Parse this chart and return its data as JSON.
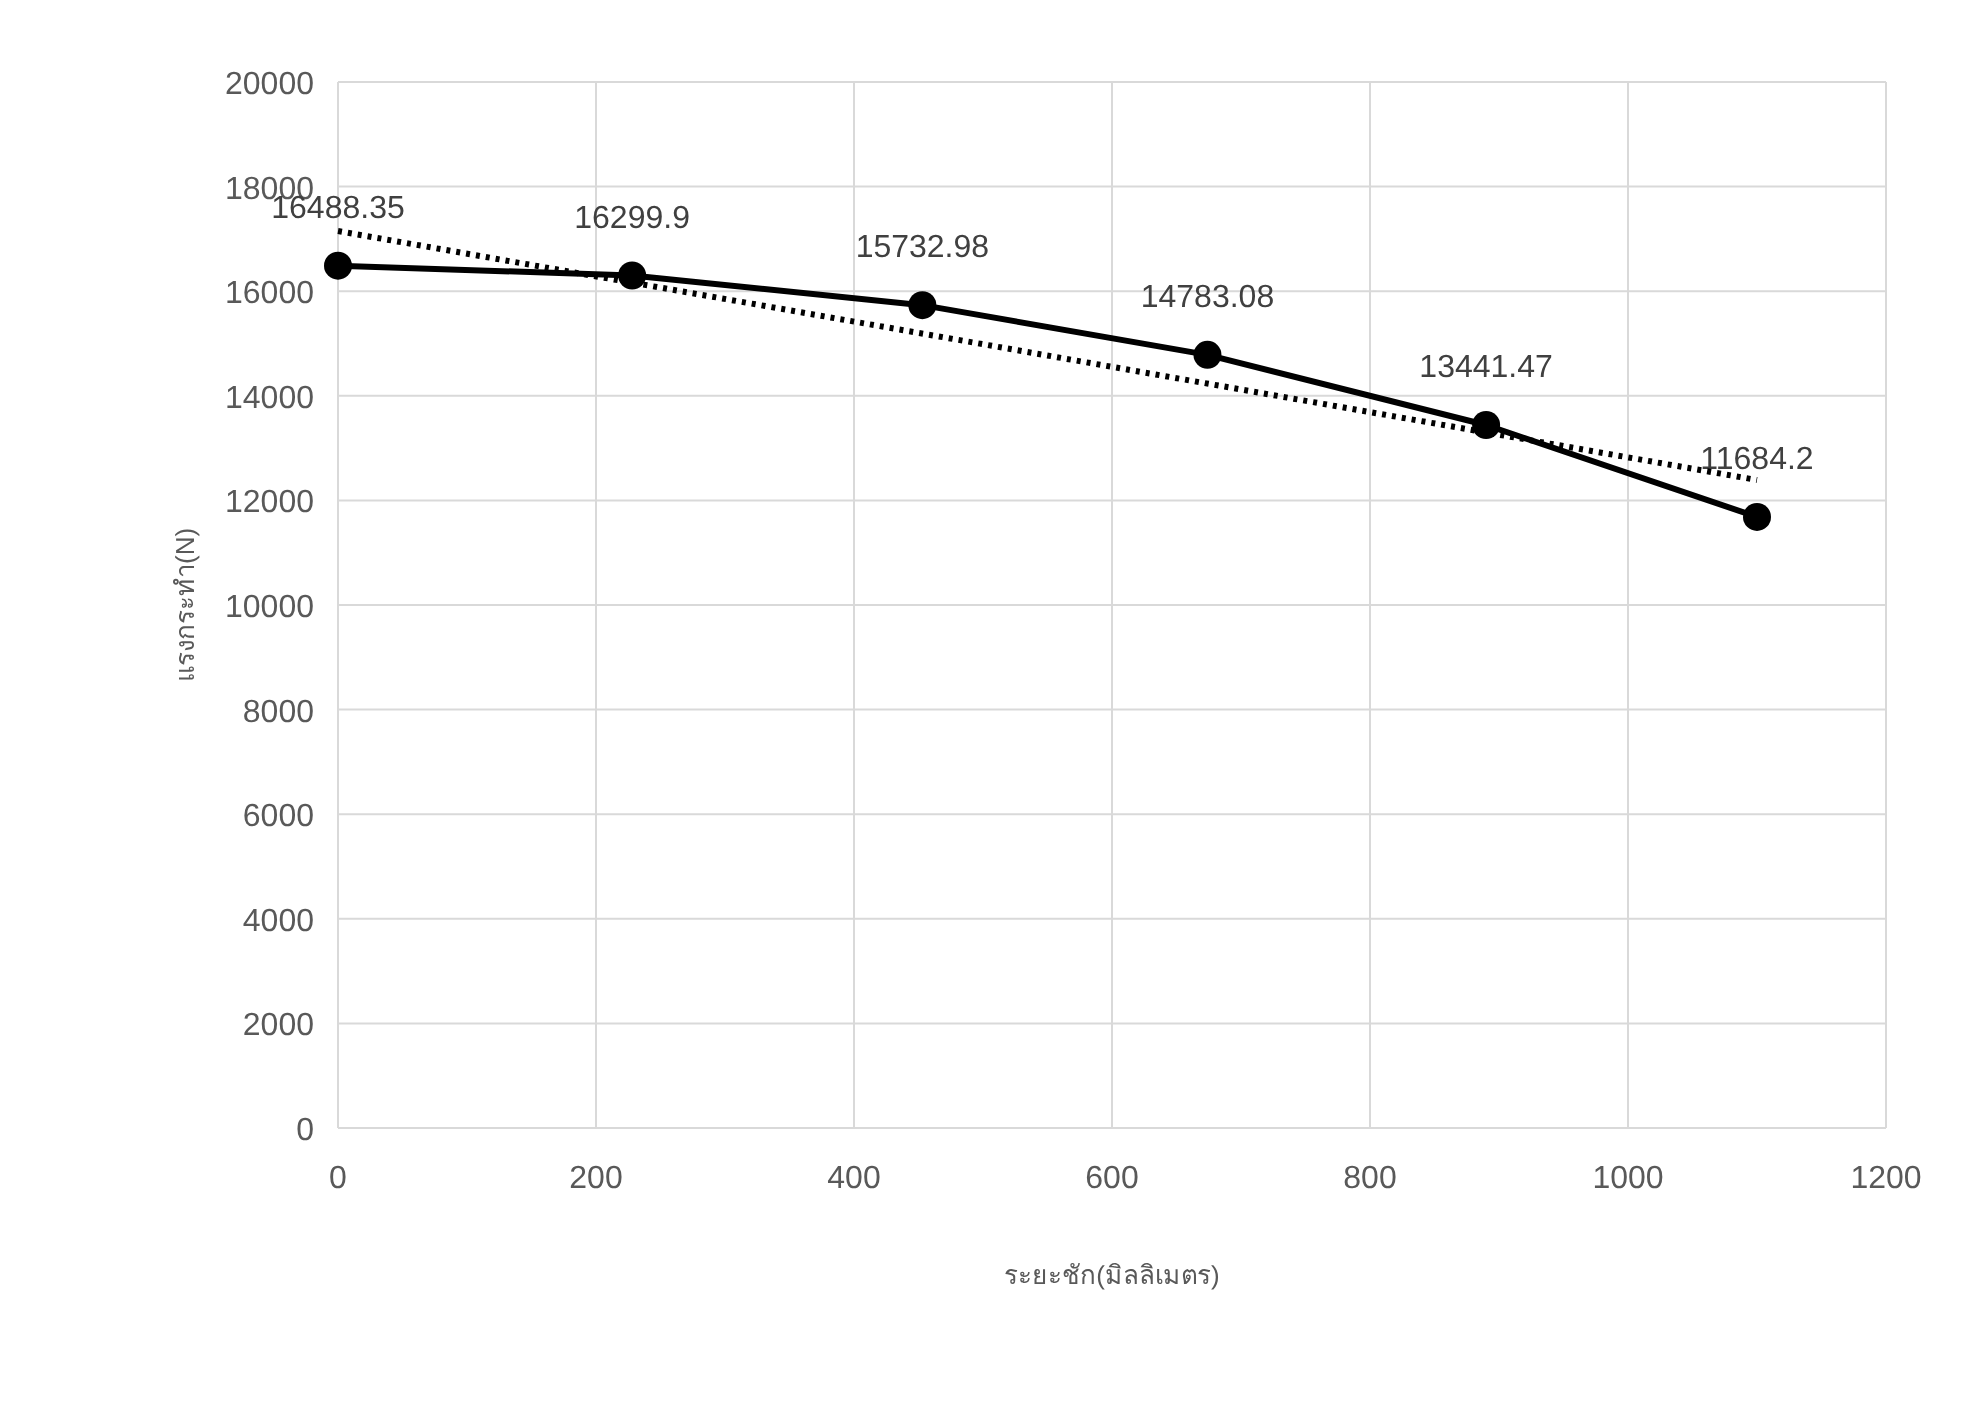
{
  "chart_data": {
    "type": "line",
    "xlabel": "ระยะชัก(มิลลิเมตร)",
    "ylabel": "แรงกระทำ(N)",
    "xlim": [
      0,
      1200
    ],
    "xticks": [
      0,
      200,
      400,
      600,
      800,
      1000,
      1200
    ],
    "ylim": [
      0,
      20000
    ],
    "yticks": [
      0,
      2000,
      4000,
      6000,
      8000,
      10000,
      12000,
      14000,
      16000,
      18000,
      20000
    ],
    "grid": true,
    "marker": "circle",
    "line_style": "solid",
    "series": [
      {
        "color": "#000000",
        "x": [
          0,
          228,
          453,
          674,
          890,
          1100
        ],
        "values": [
          16488.35,
          16299.9,
          15732.98,
          14783.08,
          13441.47,
          11684.2
        ],
        "value_labels": [
          "16488.35",
          "16299.9",
          "15732.98",
          "14783.08",
          "13441.47",
          "11684.2"
        ]
      },
      {
        "type": "line",
        "color": "#000000",
        "line_style": "dotted",
        "marker": "none",
        "x": [
          0,
          1100
        ],
        "values": [
          17150,
          12390
        ]
      }
    ]
  }
}
